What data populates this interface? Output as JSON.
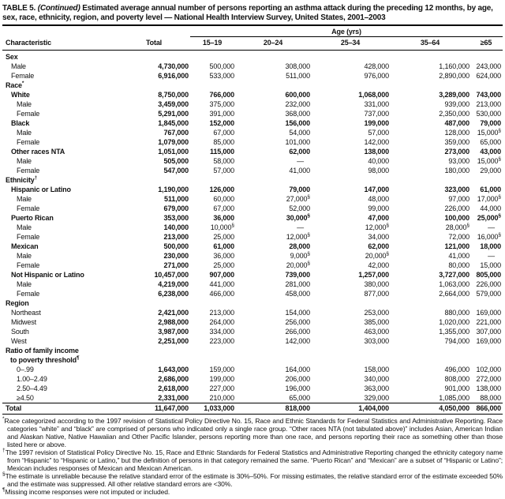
{
  "title": {
    "prefix": "TABLE 5.",
    "continued": "(Continued)",
    "rest": "Estimated average annual number of persons reporting an asthma attack during the preceding 12 months, by age, sex, race, ethnicity, region, and poverty level — National Health Interview Survey, United States, 2001–2003"
  },
  "table": {
    "age_group_header": "Age (yrs)",
    "columns": [
      "Characteristic",
      "Total",
      "15–19",
      "20–24",
      "25–34",
      "35–64",
      "≥65"
    ],
    "rows": [
      {
        "label": "Sex",
        "type": "section",
        "bold": true
      },
      {
        "label": "Male",
        "indent": 1,
        "values": [
          "4,730,000",
          "500,000",
          "308,000",
          "428,000",
          "1,160,000",
          "243,000"
        ]
      },
      {
        "label": "Female",
        "indent": 1,
        "values": [
          "6,916,000",
          "533,000",
          "511,000",
          "976,000",
          "2,890,000",
          "624,000"
        ]
      },
      {
        "label": "Race",
        "marker": "*",
        "type": "section",
        "bold": true
      },
      {
        "label": "White",
        "indent": 1,
        "bold": true,
        "values": [
          "8,750,000",
          "766,000",
          "600,000",
          "1,068,000",
          "3,289,000",
          "743,000"
        ]
      },
      {
        "label": "Male",
        "indent": 2,
        "values": [
          "3,459,000",
          "375,000",
          "232,000",
          "331,000",
          "939,000",
          "213,000"
        ]
      },
      {
        "label": "Female",
        "indent": 2,
        "values": [
          "5,291,000",
          "391,000",
          "368,000",
          "737,000",
          "2,350,000",
          "530,000"
        ]
      },
      {
        "label": "Black",
        "indent": 1,
        "bold": true,
        "values": [
          "1,845,000",
          "152,000",
          "156,000",
          "199,000",
          "487,000",
          "79,000"
        ]
      },
      {
        "label": "Male",
        "indent": 2,
        "values": [
          "767,000",
          "67,000",
          "54,000",
          "57,000",
          "128,000",
          "15,000§"
        ]
      },
      {
        "label": "Female",
        "indent": 2,
        "values": [
          "1,079,000",
          "85,000",
          "101,000",
          "142,000",
          "359,000",
          "65,000"
        ]
      },
      {
        "label": "Other races NTA",
        "indent": 1,
        "bold": true,
        "values": [
          "1,051,000",
          "115,000",
          "62,000",
          "138,000",
          "273,000",
          "43,000"
        ]
      },
      {
        "label": "Male",
        "indent": 2,
        "values": [
          "505,000",
          "58,000",
          "—",
          "40,000",
          "93,000",
          "15,000§"
        ]
      },
      {
        "label": "Female",
        "indent": 2,
        "values": [
          "547,000",
          "57,000",
          "41,000",
          "98,000",
          "180,000",
          "29,000"
        ]
      },
      {
        "label": "Ethnicity",
        "marker": "†",
        "type": "section",
        "bold": true
      },
      {
        "label": "Hispanic or Latino",
        "indent": 1,
        "bold": true,
        "values": [
          "1,190,000",
          "126,000",
          "79,000",
          "147,000",
          "323,000",
          "61,000"
        ]
      },
      {
        "label": "Male",
        "indent": 2,
        "values": [
          "511,000",
          "60,000",
          "27,000§",
          "48,000",
          "97,000",
          "17,000§"
        ]
      },
      {
        "label": "Female",
        "indent": 2,
        "values": [
          "679,000",
          "67,000",
          "52,000",
          "99,000",
          "226,000",
          "44,000"
        ]
      },
      {
        "label": "Puerto Rican",
        "indent": 1,
        "bold": true,
        "values": [
          "353,000",
          "36,000",
          "30,000§",
          "47,000",
          "100,000",
          "25,000§"
        ]
      },
      {
        "label": "Male",
        "indent": 2,
        "values": [
          "140,000",
          "10,000§",
          "—",
          "12,000§",
          "28,000§",
          "—"
        ]
      },
      {
        "label": "Female",
        "indent": 2,
        "values": [
          "213,000",
          "25,000",
          "12,000§",
          "34,000",
          "72,000",
          "16,000§"
        ]
      },
      {
        "label": "Mexican",
        "indent": 1,
        "bold": true,
        "values": [
          "500,000",
          "61,000",
          "28,000",
          "62,000",
          "121,000",
          "18,000"
        ]
      },
      {
        "label": "Male",
        "indent": 2,
        "values": [
          "230,000",
          "36,000",
          "9,000§",
          "20,000§",
          "41,000",
          "—"
        ]
      },
      {
        "label": "Female",
        "indent": 2,
        "values": [
          "271,000",
          "25,000",
          "20,000§",
          "42,000",
          "80,000",
          "15,000"
        ]
      },
      {
        "label": "Not Hispanic or Latino",
        "indent": 1,
        "bold": true,
        "values": [
          "10,457,000",
          "907,000",
          "739,000",
          "1,257,000",
          "3,727,000",
          "805,000"
        ]
      },
      {
        "label": "Male",
        "indent": 2,
        "values": [
          "4,219,000",
          "441,000",
          "281,000",
          "380,000",
          "1,063,000",
          "226,000"
        ]
      },
      {
        "label": "Female",
        "indent": 2,
        "values": [
          "6,238,000",
          "466,000",
          "458,000",
          "877,000",
          "2,664,000",
          "579,000"
        ]
      },
      {
        "label": "Region",
        "type": "section",
        "bold": true
      },
      {
        "label": "Northeast",
        "indent": 1,
        "values": [
          "2,421,000",
          "213,000",
          "154,000",
          "253,000",
          "880,000",
          "169,000"
        ]
      },
      {
        "label": "Midwest",
        "indent": 1,
        "values": [
          "2,988,000",
          "264,000",
          "256,000",
          "385,000",
          "1,020,000",
          "221,000"
        ]
      },
      {
        "label": "South",
        "indent": 1,
        "values": [
          "3,987,000",
          "334,000",
          "266,000",
          "463,000",
          "1,355,000",
          "307,000"
        ]
      },
      {
        "label": "West",
        "indent": 1,
        "values": [
          "2,251,000",
          "223,000",
          "142,000",
          "303,000",
          "794,000",
          "169,000"
        ]
      },
      {
        "label": "Ratio of family income",
        "label2": "to poverty threshold",
        "marker": "¶",
        "type": "section",
        "bold": true
      },
      {
        "label": "0–.99",
        "indent": 2,
        "values": [
          "1,643,000",
          "159,000",
          "164,000",
          "158,000",
          "496,000",
          "102,000"
        ]
      },
      {
        "label": "1.00–2.49",
        "indent": 2,
        "values": [
          "2,686,000",
          "199,000",
          "206,000",
          "340,000",
          "808,000",
          "272,000"
        ]
      },
      {
        "label": "2.50–4.49",
        "indent": 2,
        "values": [
          "2,618,000",
          "227,000",
          "196,000",
          "363,000",
          "901,000",
          "138,000"
        ]
      },
      {
        "label": "≥4.50",
        "indent": 2,
        "values": [
          "2,331,000",
          "210,000",
          "65,000",
          "329,000",
          "1,085,000",
          "88,000"
        ]
      },
      {
        "label": "Total",
        "bold": true,
        "total": true,
        "values": [
          "11,647,000",
          "1,033,000",
          "818,000",
          "1,404,000",
          "4,050,000",
          "866,000"
        ]
      }
    ]
  },
  "footnotes": [
    {
      "marker": "*",
      "text": "Race categorized according to the 1997 revision of Statistical Policy Directive No. 15, Race and Ethnic Standards for Federal Statistics and Administrative Reporting. Race categories “white” and “black” are comprised of persons who indicated only a single race group. “Other races NTA (not tabulated above)” includes Asian, American Indian and Alaskan Native, Native Hawaiian and Other Pacific Islander, persons reporting more than one race, and persons reporting their race as something other than those listed here or above."
    },
    {
      "marker": "†",
      "text": "The 1997 revision of Statistical Policy Directive No. 15, Race and Ethnic Standards for Federal Statistics and Administrative Reporting changed the ethnicity category name from “Hispanic” to “Hispanic or Latino,” but the definition of persons in that category remained the same. “Puerto Rican” and “Mexican” are a subset of “Hispanic or Latino”; Mexican includes responses of Mexican and Mexican American."
    },
    {
      "marker": "§",
      "text": "The estimate is unreliable because the relative standard error of the estimate is 30%–50%. For missing estimates, the relative standard error of the estimate exceeded 50% and the estimate was suppressed. All other relative standard errors are <30%."
    },
    {
      "marker": "¶",
      "text": "Missing income responses were not imputed or included."
    }
  ]
}
